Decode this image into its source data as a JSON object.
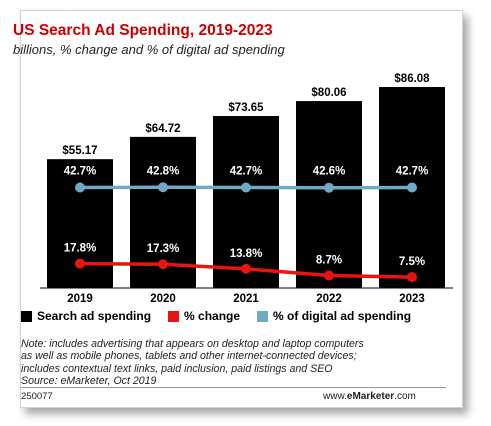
{
  "title": "US Search Ad Spending, 2019-2023",
  "subtitle": "billions, % change and % of digital ad spending",
  "chart_data": {
    "type": "bar",
    "categories": [
      "2019",
      "2020",
      "2021",
      "2022",
      "2023"
    ],
    "series": [
      {
        "name": "Search ad spending",
        "type": "bar",
        "values": [
          55.17,
          64.72,
          73.65,
          80.06,
          86.08
        ],
        "labels": [
          "$55.17",
          "$64.72",
          "$73.65",
          "$80.06",
          "$86.08"
        ],
        "color": "#000000"
      },
      {
        "name": "% change",
        "type": "line",
        "values": [
          17.8,
          17.3,
          13.8,
          8.7,
          7.5
        ],
        "labels": [
          "17.8%",
          "17.3%",
          "13.8%",
          "8.7%",
          "7.5%"
        ],
        "color": "#e8140f"
      },
      {
        "name": "% of digital ad spending",
        "type": "line",
        "values": [
          42.7,
          42.8,
          42.7,
          42.6,
          42.7
        ],
        "labels": [
          "42.7%",
          "42.8%",
          "42.7%",
          "42.6%",
          "42.7%"
        ],
        "color": "#6fa9c6"
      }
    ],
    "ylim": [
      0,
      86.08
    ],
    "grid": false,
    "legend": "bottom"
  },
  "note_lines": [
    "Note: includes advertising that appears on desktop and laptop computers",
    "as well as mobile phones, tablets and other internet-connected devices;",
    "includes contextual text links, paid inclusion, paid listings and SEO",
    "Source: eMarketer, Oct 2019"
  ],
  "footer": {
    "id": "250077",
    "brand_prefix": "www.",
    "brand_name": "eMarketer",
    "brand_suffix": ".com"
  }
}
